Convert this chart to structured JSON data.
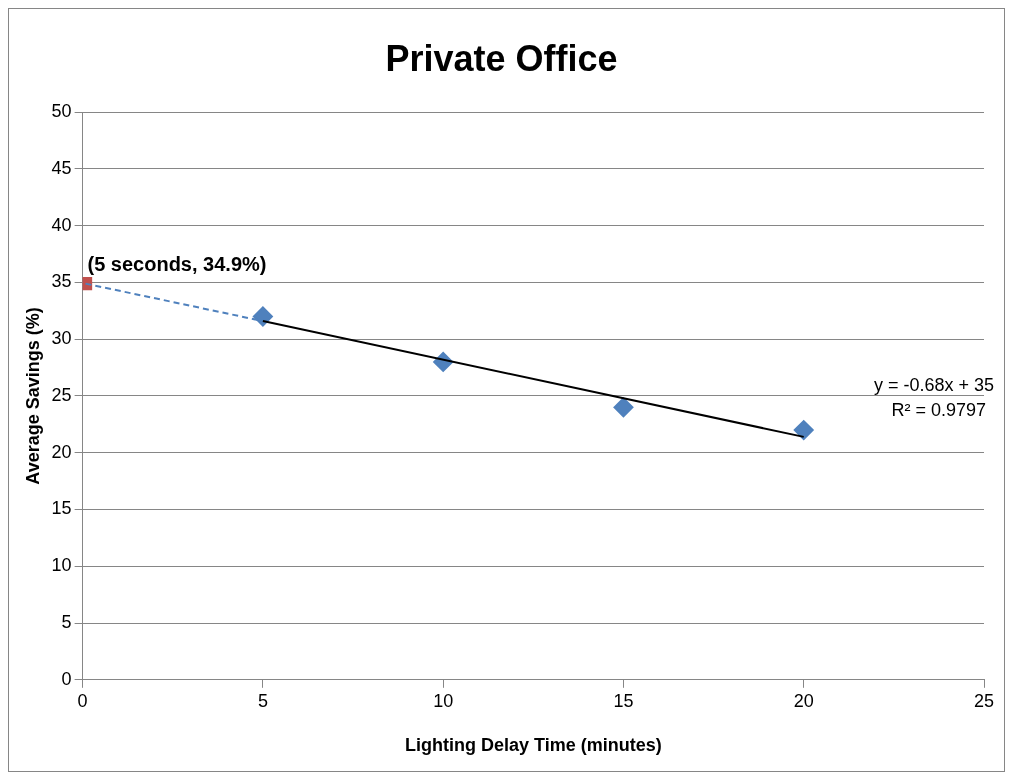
{
  "chart_data": {
    "type": "scatter",
    "title": "Private Office",
    "xlabel": "Lighting Delay Time (minutes)",
    "ylabel": "Average Savings (%)",
    "series": [
      {
        "color": "#4f81bd",
        "marker": "diamond",
        "x": [
          5,
          10,
          15,
          20
        ],
        "values": [
          32,
          28,
          24,
          22
        ]
      },
      {
        "color": "#c0504d",
        "marker": "square",
        "x": [
          0.08
        ],
        "values": [
          34.9
        ]
      },
      {
        "type": "line",
        "color": "#000000",
        "marker": "none",
        "line_style": "solid",
        "x": [
          5,
          20
        ],
        "values": [
          31.6,
          21.4
        ]
      },
      {
        "type": "line",
        "color": "#4f81bd",
        "marker": "none",
        "line_style": "dashed",
        "x": [
          0.08,
          5
        ],
        "values": [
          34.9,
          31.6
        ]
      }
    ],
    "annotations": [
      {
        "text": "(5 seconds, 34.9%)",
        "x": 0.08,
        "y": 34.9
      },
      "y = -0.68x + 35",
      "R² = 0.9797"
    ],
    "xlim": [
      0,
      25
    ],
    "xticks": [
      0,
      5,
      10,
      15,
      20,
      25
    ],
    "ylim": [
      0,
      50
    ],
    "yticks": [
      0,
      5,
      10,
      15,
      20,
      25,
      30,
      35,
      40,
      45,
      50
    ],
    "grid": "y",
    "legend": false
  }
}
